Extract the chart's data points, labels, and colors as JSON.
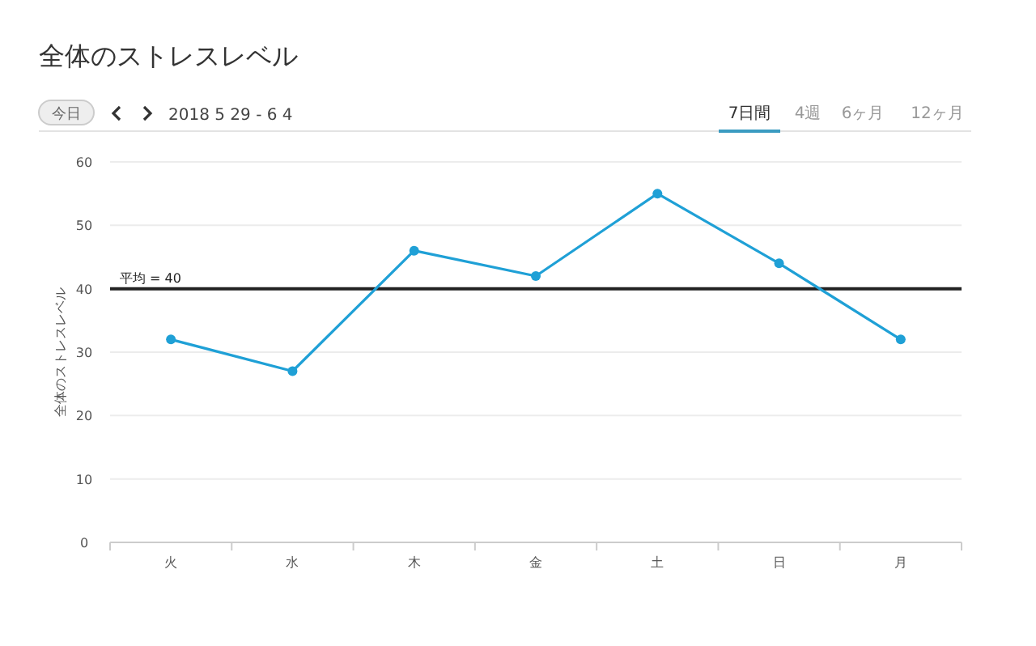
{
  "chart_data": {
    "type": "line",
    "title": "全体のストレスレベル",
    "subtitle": "2018 5 29 - 6 4",
    "ylabel": "全体のストレスレベル",
    "annotations": [
      "今日",
      "7日間",
      "4週",
      "6ヶ月",
      "12ヶ月"
    ],
    "categories": [
      "火",
      "水",
      "木",
      "金",
      "土",
      "日",
      "月"
    ],
    "values": [
      32,
      27,
      46,
      42,
      55,
      44,
      32
    ],
    "color": "#1fa0d6",
    "marker": "circle",
    "grid": "y",
    "ylim": [
      0,
      60
    ],
    "yticks": [
      0,
      10,
      20,
      30,
      40,
      50,
      60
    ],
    "ref_lines": [
      {
        "axis": "y",
        "value": 40,
        "label": "平均 = 40",
        "color": "#222222"
      }
    ]
  }
}
